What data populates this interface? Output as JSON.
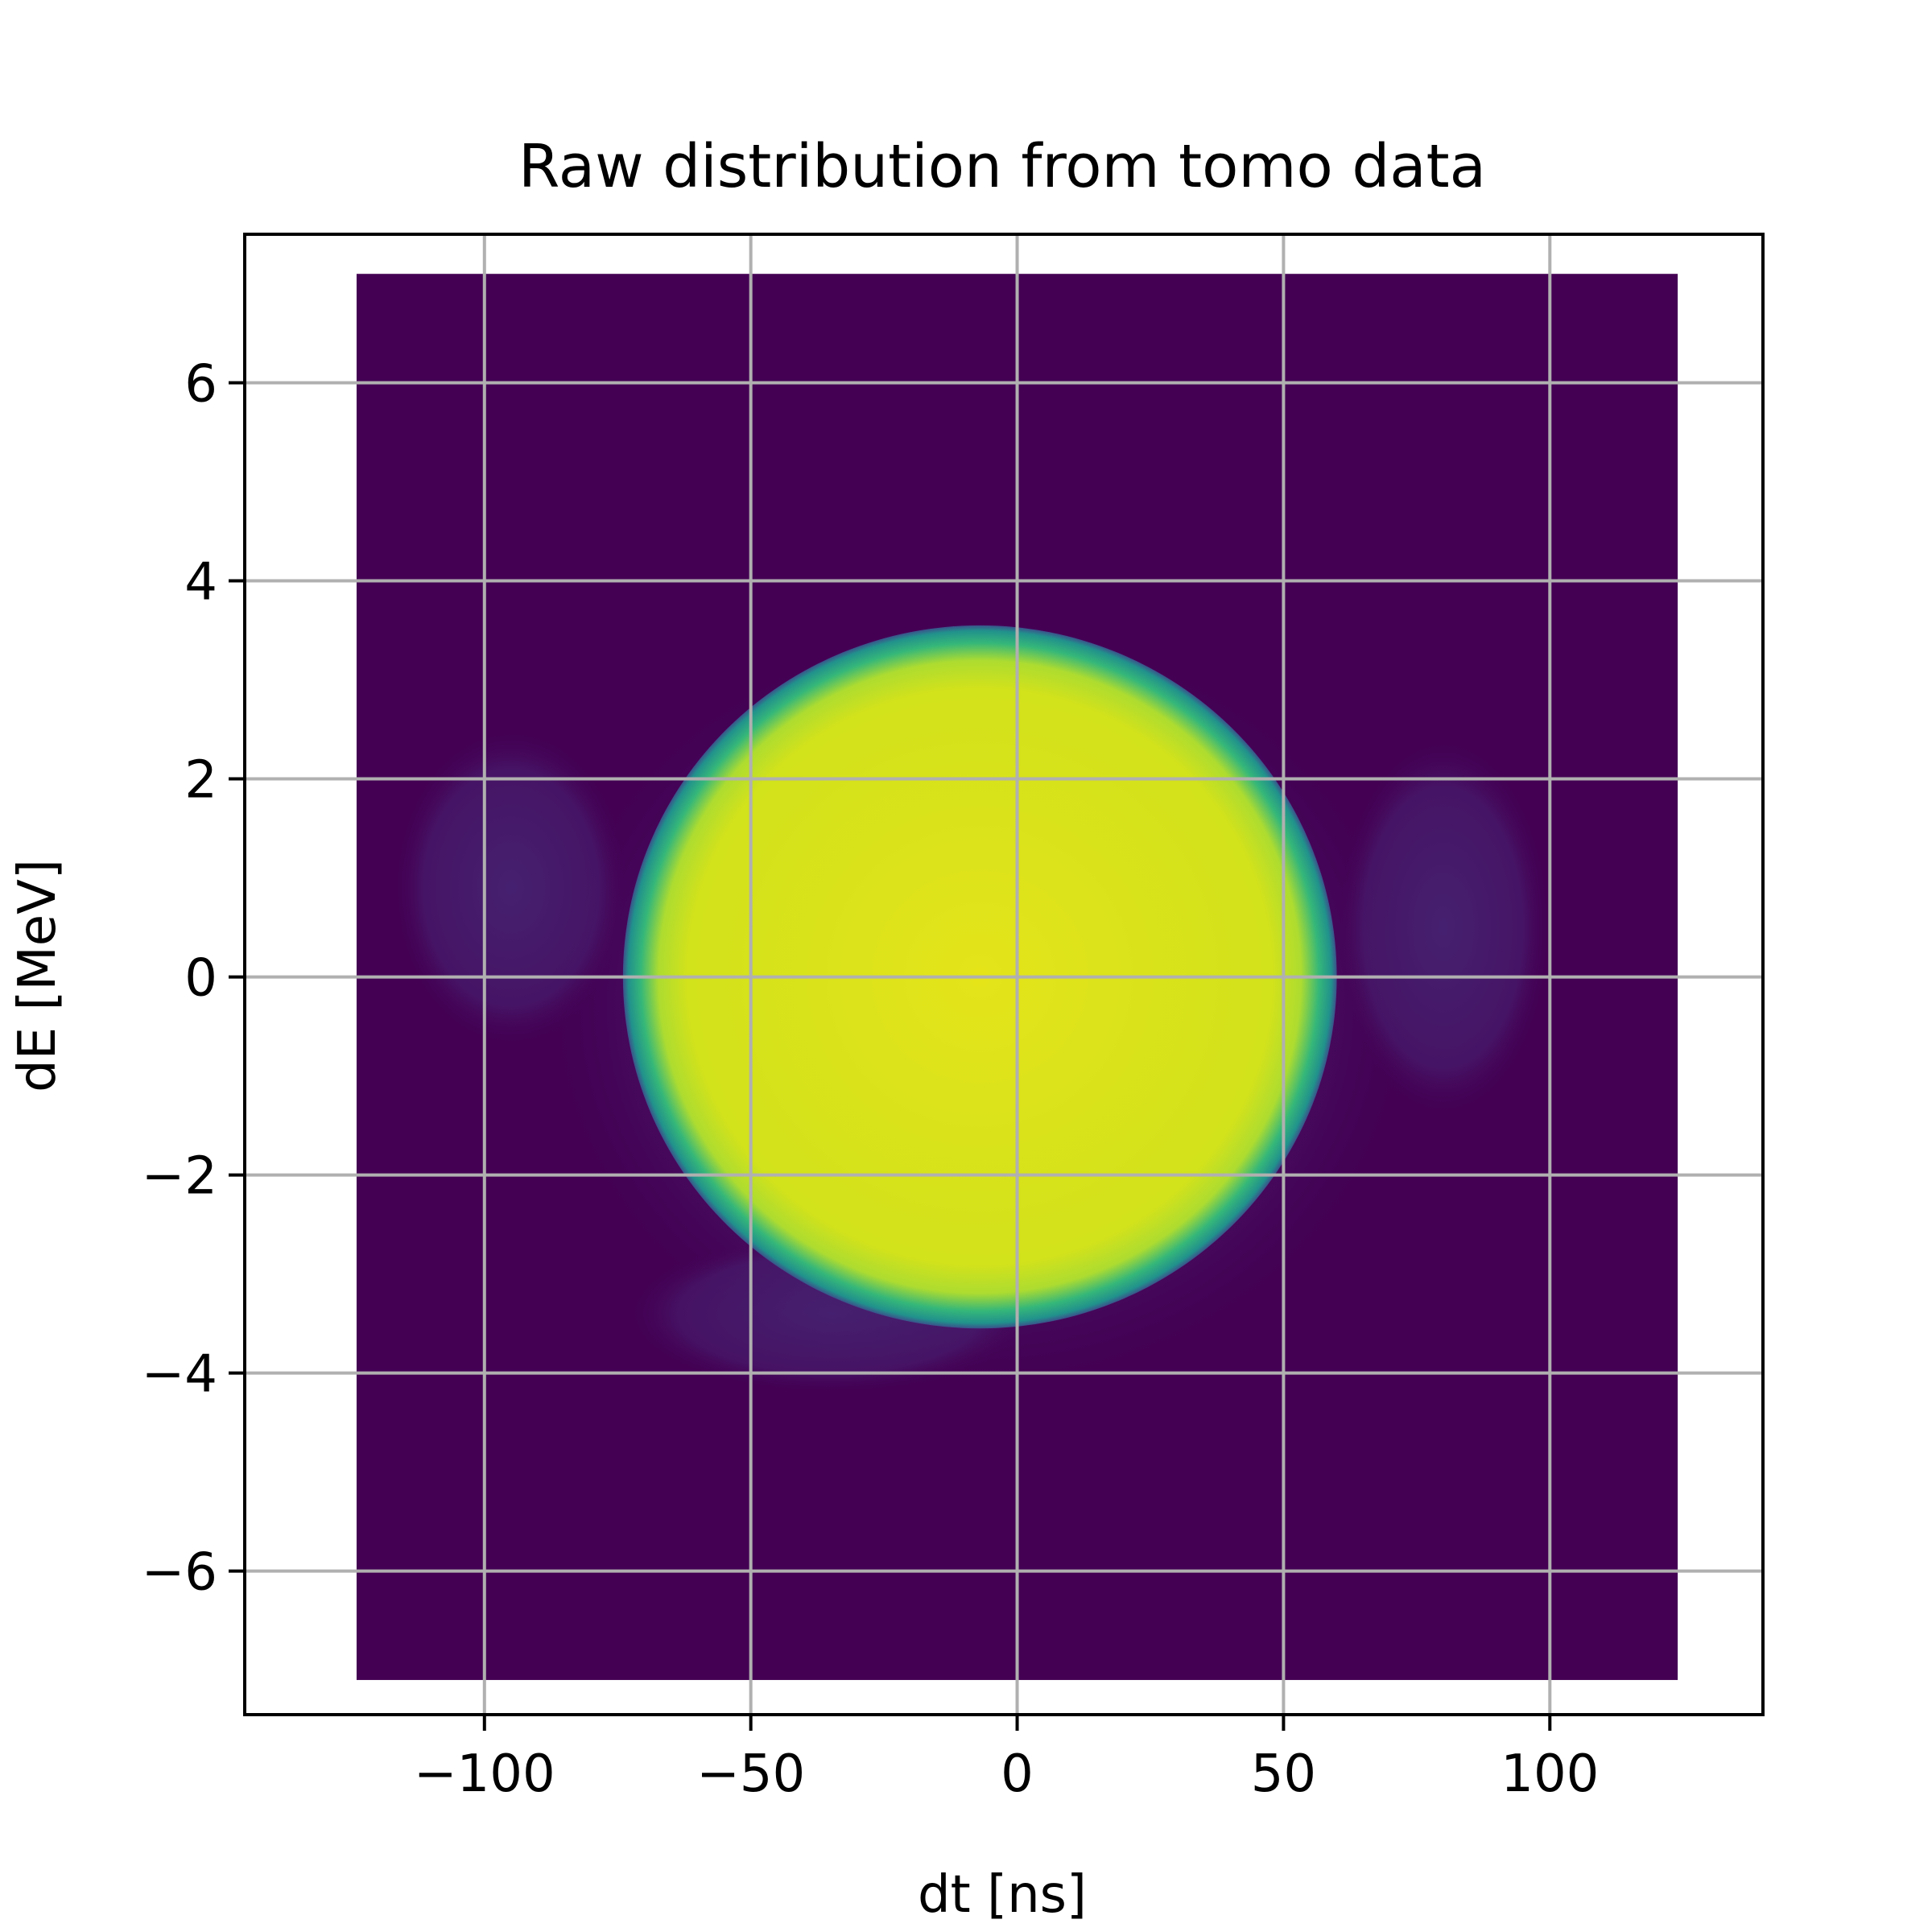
{
  "chart_data": {
    "type": "heatmap",
    "title": "Raw distribution from tomo data",
    "xlabel": "dt [ns]",
    "ylabel": "dE [MeV]",
    "xlim": [
      -145,
      140
    ],
    "ylim": [
      -7.45,
      7.5
    ],
    "x_ticks": [
      -100,
      -50,
      0,
      50,
      100
    ],
    "y_ticks": [
      -6,
      -4,
      -2,
      0,
      2,
      4,
      6
    ],
    "x_tick_labels": [
      "−100",
      "−50",
      "0",
      "50",
      "100"
    ],
    "y_tick_labels": [
      "−6",
      "−4",
      "−2",
      "0",
      "2",
      "4",
      "6"
    ],
    "grid": true,
    "colormap": "viridis",
    "background_color": "#440154",
    "image_extent": {
      "x": [
        -124,
        124
      ],
      "y": [
        -7.1,
        7.1
      ]
    },
    "distribution": {
      "shape": "filled ellipse (saturated core)",
      "center_x": -7,
      "center_y": 0,
      "semi_axis_x": 67,
      "semi_axis_y": 3.55,
      "core_color": "#dfe318",
      "edge_color": "#21918c"
    },
    "faint_halo": {
      "description": "faint filamentation on left, right and lower side",
      "x_range": [
        -120,
        100
      ],
      "y_range": [
        -4.3,
        2.5
      ]
    }
  }
}
